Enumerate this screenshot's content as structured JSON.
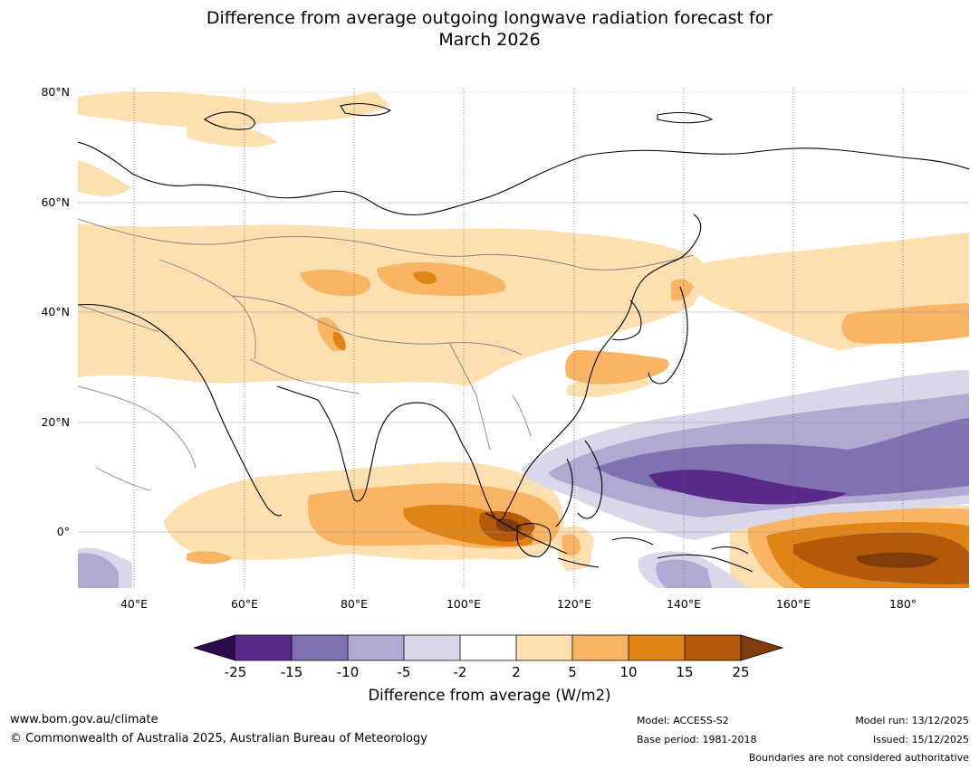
{
  "header": {
    "title_line1": "Difference from average outgoing longwave radiation forecast for",
    "title_line2": "March 2026"
  },
  "map": {
    "lat_labels": [
      "80°N",
      "60°N",
      "40°N",
      "20°N",
      "0°"
    ],
    "lon_labels": [
      "40°E",
      "60°E",
      "80°E",
      "100°E",
      "120°E",
      "140°E",
      "160°E",
      "180°"
    ],
    "colors": {
      "ocean": "#ffffff",
      "coast": "#000000",
      "border": "#808080",
      "grid": "#999999"
    }
  },
  "colorbar": {
    "ticks": [
      "-25",
      "-15",
      "-10",
      "-5",
      "-2",
      "2",
      "5",
      "10",
      "15",
      "25"
    ],
    "colors": [
      "#2d0a4e",
      "#5a2a8a",
      "#8072b0",
      "#b1a9d2",
      "#d8d8ea",
      "#ffffff",
      "#fddfb0",
      "#f9b564",
      "#e08418",
      "#b35a0a",
      "#7f3b08"
    ],
    "label": "Difference from average (W/m2)"
  },
  "footer": {
    "url": "www.bom.gov.au/climate",
    "copyright": "© Commonwealth of Australia 2025, Australian Bureau of Meteorology",
    "model": "Model: ACCESS-S2",
    "base_period": "Base period: 1981-2018",
    "model_run": "Model run: 13/12/2025",
    "issued": "Issued: 15/12/2025",
    "boundaries": "Boundaries are not considered authoritative"
  }
}
